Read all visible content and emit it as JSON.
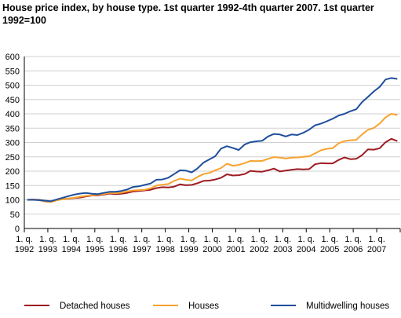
{
  "chart_data": {
    "type": "line",
    "title": "House price index, by house type. 1st quarter 1992-4th quarter 2007. 1st quarter 1992=100",
    "xlabel": "",
    "ylabel": "",
    "ylim": [
      0,
      600
    ],
    "y_ticks": [
      "0",
      "50",
      "100",
      "150",
      "200",
      "250",
      "300",
      "350",
      "400",
      "450",
      "500",
      "550",
      "600"
    ],
    "x_tick_labels": [
      {
        "q": "1. q.",
        "year": "1992"
      },
      {
        "q": "1. q.",
        "year": "1993"
      },
      {
        "q": "1. q.",
        "year": "1994"
      },
      {
        "q": "1. q.",
        "year": "1995"
      },
      {
        "q": "1. q.",
        "year": "1996"
      },
      {
        "q": "1. q.",
        "year": "1997"
      },
      {
        "q": "1. q.",
        "year": "1998"
      },
      {
        "q": "1. q.",
        "year": "1999"
      },
      {
        "q": "1. q.",
        "year": "2000"
      },
      {
        "q": "1. q.",
        "year": "2001"
      },
      {
        "q": "1. q.",
        "year": "2002"
      },
      {
        "q": "1. q.",
        "year": "2003"
      },
      {
        "q": "1. q.",
        "year": "2004"
      },
      {
        "q": "1. q.",
        "year": "2005"
      },
      {
        "q": "1. q.",
        "year": "2006"
      },
      {
        "q": "1. q.",
        "year": "2007"
      }
    ],
    "x": [
      "1992Q1",
      "1992Q2",
      "1992Q3",
      "1992Q4",
      "1993Q1",
      "1993Q2",
      "1993Q3",
      "1993Q4",
      "1994Q1",
      "1994Q2",
      "1994Q3",
      "1994Q4",
      "1995Q1",
      "1995Q2",
      "1995Q3",
      "1995Q4",
      "1996Q1",
      "1996Q2",
      "1996Q3",
      "1996Q4",
      "1997Q1",
      "1997Q2",
      "1997Q3",
      "1997Q4",
      "1998Q1",
      "1998Q2",
      "1998Q3",
      "1998Q4",
      "1999Q1",
      "1999Q2",
      "1999Q3",
      "1999Q4",
      "2000Q1",
      "2000Q2",
      "2000Q3",
      "2000Q4",
      "2001Q1",
      "2001Q2",
      "2001Q3",
      "2001Q4",
      "2002Q1",
      "2002Q2",
      "2002Q3",
      "2002Q4",
      "2003Q1",
      "2003Q2",
      "2003Q3",
      "2003Q4",
      "2004Q1",
      "2004Q2",
      "2004Q3",
      "2004Q4",
      "2005Q1",
      "2005Q2",
      "2005Q3",
      "2005Q4",
      "2006Q1",
      "2006Q2",
      "2006Q3",
      "2006Q4",
      "2007Q1",
      "2007Q2",
      "2007Q3",
      "2007Q4"
    ],
    "grid": true,
    "legend_position": "bottom",
    "series": [
      {
        "name": "Detached houses",
        "color": "#9e1b22",
        "values": [
          100,
          101,
          100,
          97,
          94,
          99,
          103,
          104,
          106,
          108,
          112,
          115,
          116,
          118,
          122,
          120,
          121,
          124,
          129,
          131,
          133,
          135,
          141,
          144,
          143,
          146,
          154,
          151,
          152,
          158,
          166,
          167,
          171,
          177,
          189,
          185,
          186,
          190,
          201,
          199,
          198,
          203,
          209,
          199,
          202,
          205,
          207,
          206,
          207,
          224,
          228,
          227,
          227,
          239,
          248,
          242,
          243,
          256,
          276,
          275,
          280,
          301,
          313,
          305
        ]
      },
      {
        "name": "Houses",
        "color": "#f7a22e",
        "values": [
          100,
          101,
          99,
          94,
          92,
          98,
          102,
          105,
          107,
          111,
          114,
          116,
          118,
          120,
          124,
          123,
          125,
          129,
          133,
          134,
          135,
          140,
          150,
          153,
          155,
          166,
          174,
          170,
          168,
          180,
          190,
          194,
          203,
          211,
          226,
          219,
          222,
          228,
          236,
          235,
          236,
          243,
          249,
          247,
          244,
          247,
          248,
          250,
          252,
          262,
          273,
          278,
          280,
          297,
          305,
          308,
          309,
          328,
          344,
          351,
          366,
          388,
          400,
          396
        ]
      },
      {
        "name": "Multidwelling houses",
        "color": "#1f4e9c",
        "values": [
          100,
          100,
          99,
          97,
          95,
          101,
          107,
          113,
          118,
          122,
          124,
          121,
          120,
          124,
          128,
          128,
          131,
          136,
          145,
          147,
          152,
          157,
          170,
          171,
          177,
          190,
          203,
          202,
          196,
          210,
          230,
          241,
          252,
          279,
          287,
          281,
          274,
          293,
          301,
          304,
          306,
          321,
          330,
          328,
          321,
          328,
          326,
          334,
          345,
          360,
          366,
          374,
          383,
          394,
          400,
          409,
          416,
          441,
          459,
          478,
          494,
          520,
          525,
          522
        ]
      }
    ]
  }
}
